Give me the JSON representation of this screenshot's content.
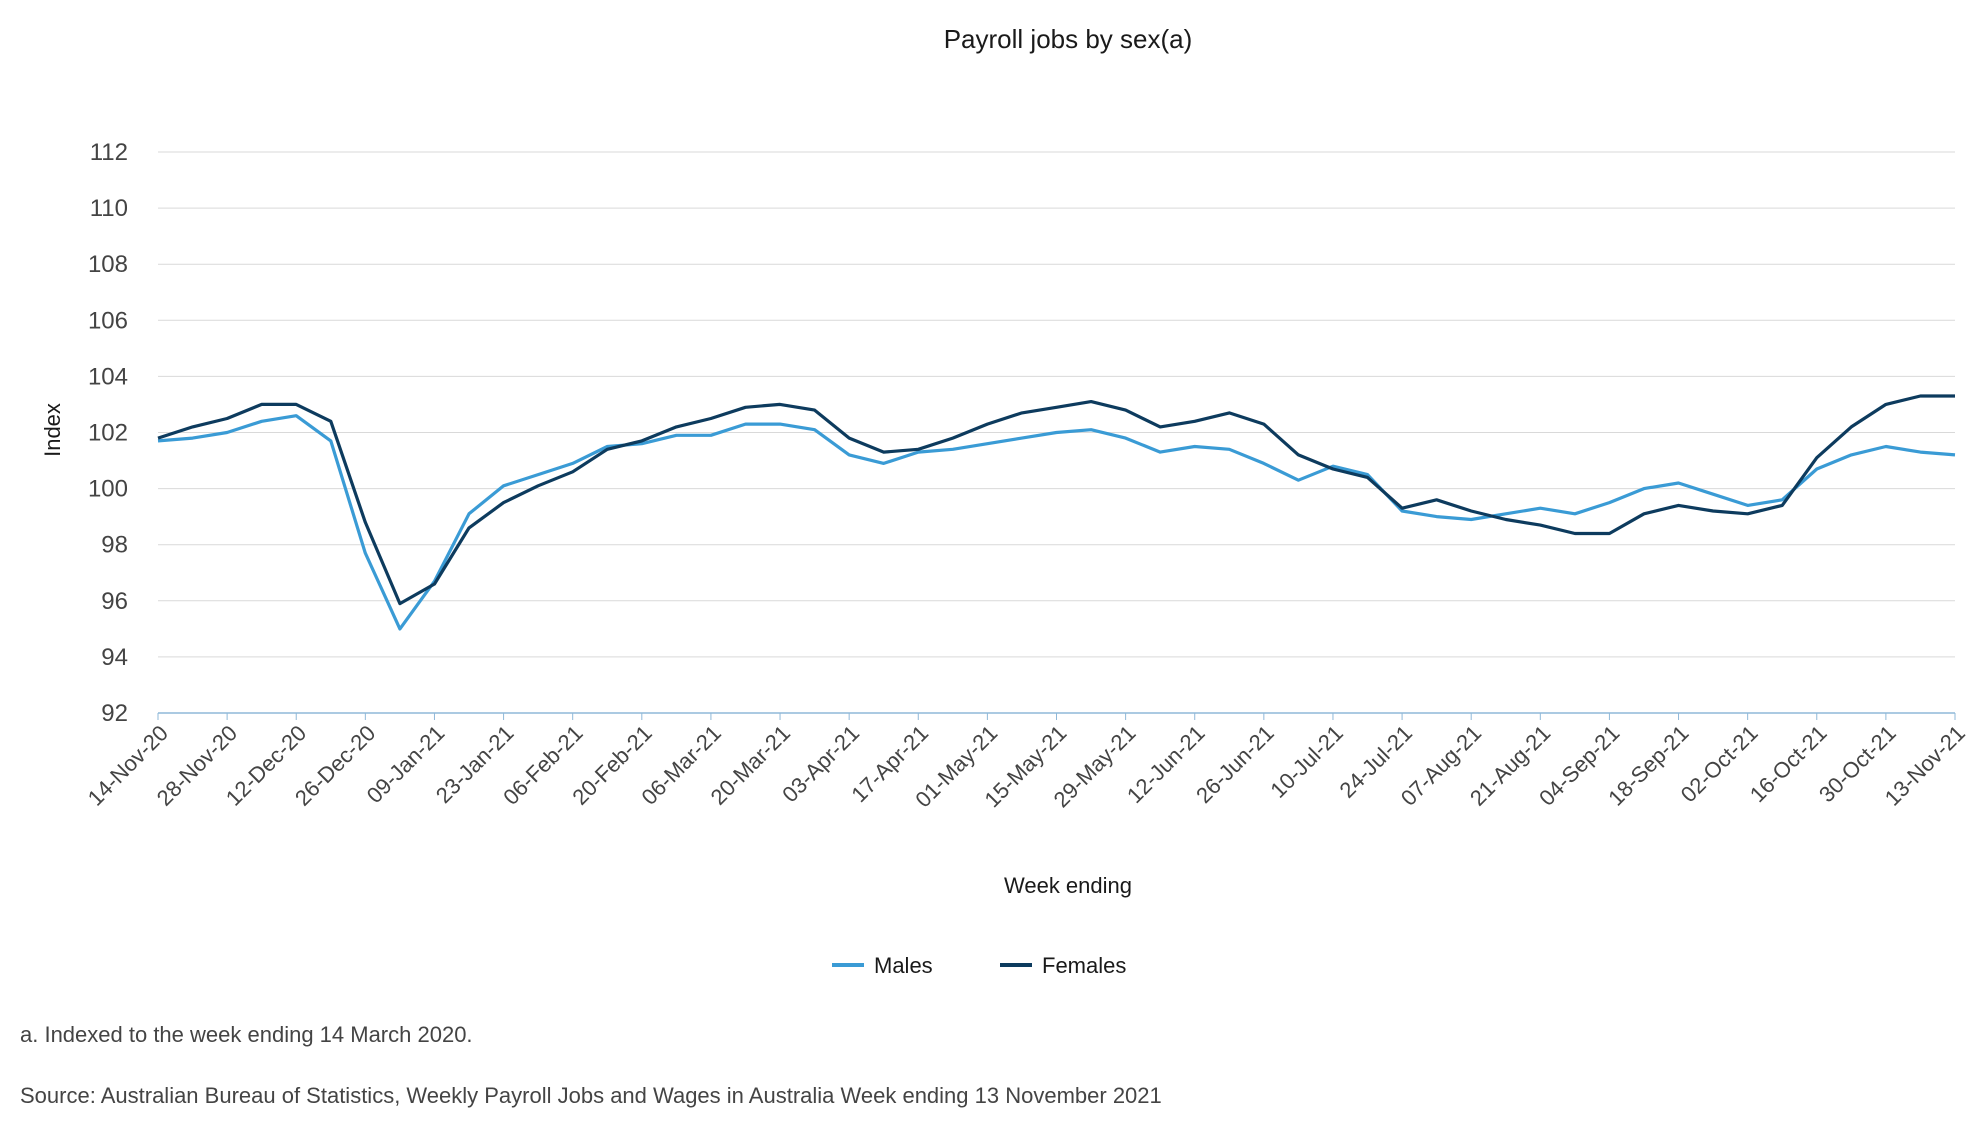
{
  "chart_data": {
    "type": "line",
    "title": "Payroll jobs by sex(a)",
    "xlabel": "Week ending",
    "ylabel": "Index",
    "ylim": [
      92,
      112
    ],
    "yticks": [
      92,
      94,
      96,
      98,
      100,
      102,
      104,
      106,
      108,
      110,
      112
    ],
    "grid": true,
    "legend_position": "bottom",
    "tick_labels": [
      "14-Nov-20",
      "28-Nov-20",
      "12-Dec-20",
      "26-Dec-20",
      "09-Jan-21",
      "23-Jan-21",
      "06-Feb-21",
      "20-Feb-21",
      "06-Mar-21",
      "20-Mar-21",
      "03-Apr-21",
      "17-Apr-21",
      "01-May-21",
      "15-May-21",
      "29-May-21",
      "12-Jun-21",
      "26-Jun-21",
      "10-Jul-21",
      "24-Jul-21",
      "07-Aug-21",
      "21-Aug-21",
      "04-Sep-21",
      "18-Sep-21",
      "02-Oct-21",
      "16-Oct-21",
      "30-Oct-21",
      "13-Nov-21"
    ],
    "series": [
      {
        "name": "Males",
        "color": "#3a9bd5",
        "values": [
          101.7,
          101.8,
          102.0,
          102.4,
          102.6,
          101.7,
          97.7,
          95.0,
          96.7,
          99.1,
          100.1,
          100.5,
          100.9,
          101.5,
          101.6,
          101.9,
          101.9,
          102.3,
          102.3,
          102.1,
          101.2,
          100.9,
          101.3,
          101.4,
          101.6,
          101.8,
          102.0,
          102.1,
          101.8,
          101.3,
          101.5,
          101.4,
          100.9,
          100.3,
          100.8,
          100.5,
          99.2,
          99.0,
          98.9,
          99.1,
          99.3,
          99.1,
          99.5,
          100.0,
          100.2,
          99.8,
          99.4,
          99.6,
          100.7,
          101.2,
          101.5,
          101.3,
          101.2
        ]
      },
      {
        "name": "Females",
        "color": "#0d3b5e",
        "values": [
          101.8,
          102.2,
          102.5,
          103.0,
          103.0,
          102.4,
          98.8,
          95.9,
          96.6,
          98.6,
          99.5,
          100.1,
          100.6,
          101.4,
          101.7,
          102.2,
          102.5,
          102.9,
          103.0,
          102.8,
          101.8,
          101.3,
          101.4,
          101.8,
          102.3,
          102.7,
          102.9,
          103.1,
          102.8,
          102.2,
          102.4,
          102.7,
          102.3,
          101.2,
          100.7,
          100.4,
          99.3,
          99.6,
          99.2,
          98.9,
          98.7,
          98.4,
          98.4,
          99.1,
          99.4,
          99.2,
          99.1,
          99.4,
          101.1,
          102.2,
          103.0,
          103.3,
          103.3
        ]
      }
    ]
  },
  "footnote": "a. Indexed to the week ending 14 March 2020.",
  "source": "Source: Australian Bureau of Statistics, Weekly Payroll Jobs and Wages in Australia Week ending 13 November 2021"
}
